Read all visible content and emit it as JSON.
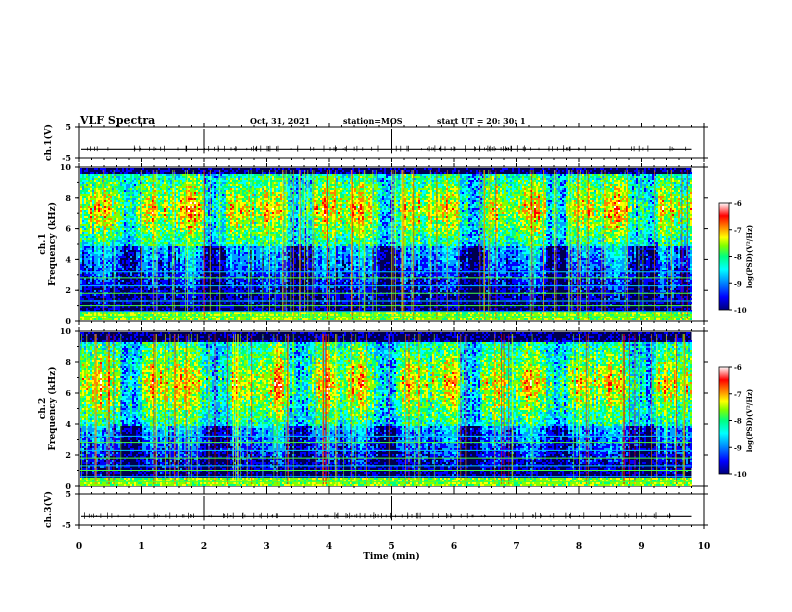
{
  "header": {
    "title": "VLF Spectra",
    "date": "Oct. 31, 2021",
    "station": "station=MOS",
    "start": "start UT =  20: 30: 1"
  },
  "chart_data": [
    {
      "type": "line",
      "panel": "ch1-waveform",
      "ylabel": "ch.1(V)",
      "ylim": [
        -5,
        5
      ],
      "yticks": [
        5,
        -5
      ],
      "baseline": -2.2,
      "xlim": [
        0,
        10
      ]
    },
    {
      "type": "heatmap",
      "panel": "ch1-spectrogram",
      "ylabel": "ch.1 Frequency (kHz)",
      "ylim": [
        0,
        10
      ],
      "yticks": [
        0,
        2,
        4,
        6,
        8,
        10
      ],
      "xlim": [
        0,
        10
      ],
      "data_x_end": 9.8,
      "band": [
        5.0,
        9.6
      ],
      "colorbar": {
        "label": "log(PSD)(V²/Hz)",
        "range": [
          -10,
          -6
        ],
        "ticks": [
          -6,
          -7,
          -8,
          -9,
          -10
        ]
      }
    },
    {
      "type": "heatmap",
      "panel": "ch2-spectrogram",
      "ylabel": "ch.2 Frequency (kHz)",
      "ylim": [
        0,
        10
      ],
      "yticks": [
        0,
        2,
        4,
        6,
        8,
        10
      ],
      "xlim": [
        0,
        10
      ],
      "data_x_end": 9.8,
      "band": [
        4.0,
        9.3
      ],
      "colorbar": {
        "label": "log(PSD)(V²/Hz)",
        "range": [
          -10,
          -6
        ],
        "ticks": [
          -6,
          -7,
          -8,
          -9,
          -10
        ]
      }
    },
    {
      "type": "line",
      "panel": "ch3-waveform",
      "ylabel": "ch.3(V)",
      "ylim": [
        -5,
        5
      ],
      "yticks": [
        5,
        -5
      ],
      "baseline": -2.2,
      "xlim": [
        0,
        10
      ],
      "xlabel": "Time (min)",
      "xticks": [
        0,
        1,
        2,
        3,
        4,
        5,
        6,
        7,
        8,
        9,
        10
      ]
    }
  ],
  "colors": {
    "spectrum": [
      "#000078",
      "#0000ff",
      "#00a0ff",
      "#00ffff",
      "#00ff80",
      "#80ff00",
      "#ffff00",
      "#ff8000",
      "#ff0000",
      "#ffffff"
    ]
  }
}
